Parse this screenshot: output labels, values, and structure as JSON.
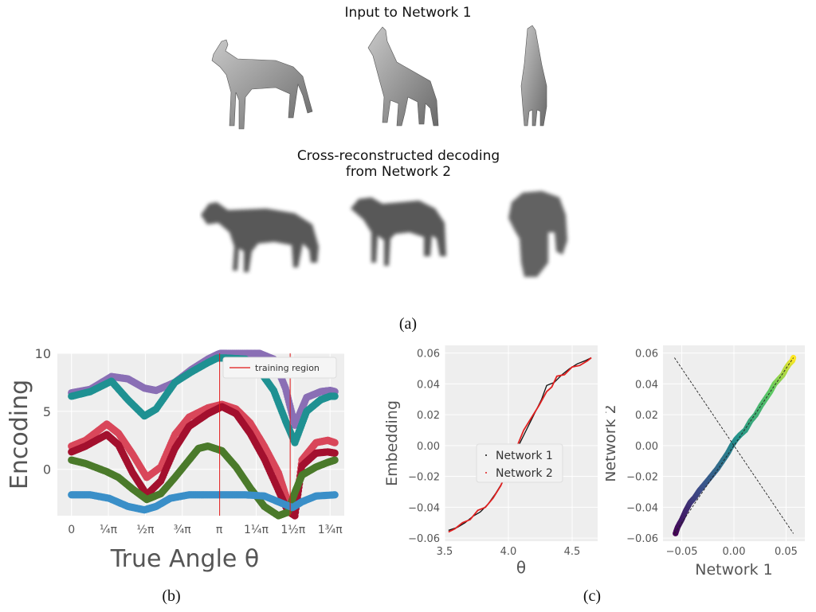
{
  "panel_a": {
    "top_title": "Input to Network 1",
    "bottom_title_line1": "Cross-reconstructed decoding",
    "bottom_title_line2": "from Network 2",
    "caption": "(a)"
  },
  "panel_b": {
    "caption": "(b)"
  },
  "panel_c": {
    "caption": "(c)"
  },
  "chart_data": [
    {
      "type": "scatter",
      "title": "",
      "xlabel": "True Angle θ",
      "ylabel": "Encoding",
      "xlim": [
        -0.3,
        5.8
      ],
      "ylim": [
        -4,
        10
      ],
      "xticks": [
        {
          "v": 0,
          "label": "0"
        },
        {
          "v": 0.785,
          "label": "¼π"
        },
        {
          "v": 1.571,
          "label": "½π"
        },
        {
          "v": 2.356,
          "label": "¾π"
        },
        {
          "v": 3.142,
          "label": "π"
        },
        {
          "v": 3.927,
          "label": "1¼π"
        },
        {
          "v": 4.712,
          "label": "1½π"
        },
        {
          "v": 5.498,
          "label": "1¾π"
        }
      ],
      "yticks": [
        0,
        5,
        10
      ],
      "grid": true,
      "legend": {
        "entries": [
          "training region"
        ],
        "placement": "top-right"
      },
      "training_region": [
        3.15,
        4.65
      ],
      "series": [
        {
          "color": "#8a6fb5",
          "x": [
            0,
            0.4,
            0.85,
            1.2,
            1.55,
            1.8,
            2.2,
            2.55,
            2.9,
            3.1,
            3.3,
            3.7,
            4.0,
            4.3,
            4.55,
            4.75,
            5.0,
            5.3,
            5.5,
            5.6
          ],
          "y": [
            6.6,
            6.9,
            8.0,
            7.8,
            7.0,
            6.8,
            7.5,
            8.6,
            9.5,
            9.9,
            10.2,
            10.2,
            10.0,
            9.5,
            7.0,
            3.8,
            6.2,
            6.7,
            6.8,
            6.7
          ]
        },
        {
          "color": "#1f9192",
          "x": [
            0,
            0.4,
            0.85,
            1.2,
            1.55,
            1.8,
            2.2,
            2.55,
            2.9,
            3.1,
            3.3,
            3.7,
            4.0,
            4.3,
            4.55,
            4.75,
            5.0,
            5.3,
            5.5,
            5.6
          ],
          "y": [
            6.3,
            6.7,
            7.6,
            6.0,
            4.6,
            5.2,
            7.5,
            8.4,
            9.2,
            9.6,
            9.6,
            9.5,
            8.5,
            6.8,
            4.2,
            2.3,
            5.0,
            6.0,
            6.3,
            6.3
          ]
        },
        {
          "color": "#d9475a",
          "x": [
            0,
            0.3,
            0.75,
            1.0,
            1.3,
            1.6,
            1.9,
            2.2,
            2.5,
            2.9,
            3.2,
            3.5,
            3.8,
            4.1,
            4.4,
            4.6,
            4.75,
            4.9,
            5.2,
            5.45,
            5.6
          ],
          "y": [
            2.0,
            2.5,
            3.9,
            3.1,
            1.3,
            -0.7,
            0.2,
            3.0,
            4.5,
            5.3,
            5.6,
            5.2,
            4.0,
            2.0,
            -0.3,
            -2.8,
            -4.0,
            0.8,
            2.3,
            2.5,
            2.3
          ]
        },
        {
          "color": "#a3102e",
          "x": [
            0,
            0.3,
            0.75,
            1.0,
            1.3,
            1.6,
            1.9,
            2.2,
            2.5,
            2.9,
            3.2,
            3.5,
            3.8,
            4.1,
            4.4,
            4.6,
            4.75,
            4.9,
            5.2,
            5.45,
            5.6
          ],
          "y": [
            1.5,
            2.0,
            3.0,
            2.1,
            -0.3,
            -2.2,
            -1.0,
            1.8,
            3.7,
            4.8,
            5.4,
            4.8,
            3.1,
            0.9,
            -1.8,
            -3.6,
            -4.0,
            0.3,
            1.4,
            1.5,
            1.4
          ]
        },
        {
          "color": "#4b7a2b",
          "x": [
            0,
            0.3,
            0.75,
            1.0,
            1.3,
            1.6,
            1.9,
            2.2,
            2.5,
            2.7,
            2.9,
            3.2,
            3.5,
            3.8,
            4.1,
            4.4,
            4.6,
            4.75,
            4.9,
            5.2,
            5.45,
            5.6
          ],
          "y": [
            0.8,
            0.5,
            -0.2,
            -0.7,
            -1.7,
            -2.6,
            -2.1,
            -0.7,
            0.8,
            1.8,
            2.0,
            1.6,
            0.2,
            -1.6,
            -3.2,
            -4.0,
            -3.7,
            -2.0,
            -0.5,
            0.2,
            0.6,
            0.8
          ]
        },
        {
          "color": "#3a8fc8",
          "x": [
            0,
            0.4,
            0.8,
            1.2,
            1.55,
            1.8,
            2.1,
            2.5,
            2.9,
            3.3,
            3.7,
            4.1,
            4.4,
            4.7,
            4.9,
            5.2,
            5.6
          ],
          "y": [
            -2.2,
            -2.2,
            -2.5,
            -3.2,
            -3.5,
            -3.2,
            -2.5,
            -2.2,
            -2.2,
            -2.2,
            -2.2,
            -2.3,
            -2.8,
            -3.3,
            -2.8,
            -2.3,
            -2.2
          ]
        }
      ]
    },
    {
      "type": "line",
      "title": "",
      "xlabel": "θ",
      "ylabel": "Embedding",
      "xlim": [
        3.5,
        4.7
      ],
      "ylim": [
        -0.062,
        0.065
      ],
      "xticks": [
        3.5,
        4.0,
        4.5
      ],
      "yticks": [
        -0.06,
        -0.04,
        -0.02,
        0.0,
        0.02,
        0.04,
        0.06
      ],
      "ytick_labels": [
        "−0.06",
        "−0.04",
        "−0.02",
        "0.00",
        "0.02",
        "0.04",
        "0.06"
      ],
      "grid": true,
      "legend": {
        "entries": [
          "Network 1",
          "Network 2"
        ],
        "placement": "center-right"
      },
      "series": [
        {
          "name": "Network 1",
          "color": "#111111",
          "x": [
            3.53,
            3.6,
            3.66,
            3.72,
            3.78,
            3.84,
            3.9,
            3.96,
            4.02,
            4.08,
            4.14,
            4.2,
            4.26,
            4.3,
            4.36,
            4.42,
            4.48,
            4.54,
            4.6,
            4.65
          ],
          "y": [
            -0.055,
            -0.053,
            -0.05,
            -0.046,
            -0.043,
            -0.038,
            -0.031,
            -0.023,
            -0.012,
            0.0,
            0.01,
            0.02,
            0.03,
            0.039,
            0.041,
            0.046,
            0.05,
            0.053,
            0.055,
            0.057
          ]
        },
        {
          "name": "Network 2",
          "color": "#e02020",
          "x": [
            3.53,
            3.58,
            3.64,
            3.7,
            3.76,
            3.82,
            3.88,
            3.94,
            4.0,
            4.06,
            4.12,
            4.18,
            4.24,
            4.3,
            4.34,
            4.38,
            4.44,
            4.5,
            4.56,
            4.62,
            4.65
          ],
          "y": [
            -0.056,
            -0.054,
            -0.05,
            -0.048,
            -0.042,
            -0.04,
            -0.034,
            -0.026,
            -0.014,
            -0.002,
            0.01,
            0.018,
            0.026,
            0.035,
            0.038,
            0.045,
            0.046,
            0.051,
            0.052,
            0.055,
            0.057
          ]
        }
      ]
    },
    {
      "type": "scatter",
      "title": "",
      "xlabel": "Network 1",
      "ylabel": "Network 2",
      "xlim": [
        -0.068,
        0.068
      ],
      "ylim": [
        -0.062,
        0.065
      ],
      "xticks": [
        -0.05,
        0.0,
        0.05
      ],
      "xtick_labels": [
        "−0.05",
        "0.00",
        "0.05"
      ],
      "yticks": [
        -0.06,
        -0.04,
        -0.02,
        0.0,
        0.02,
        0.04,
        0.06
      ],
      "ytick_labels": [
        "−0.06",
        "−0.04",
        "−0.02",
        "0.00",
        "0.02",
        "0.04",
        "0.06"
      ],
      "grid": true,
      "colormap": "viridis",
      "points_x": [
        -0.056,
        -0.054,
        -0.05,
        -0.046,
        -0.042,
        -0.038,
        -0.033,
        -0.028,
        -0.022,
        -0.016,
        -0.011,
        -0.006,
        -0.002,
        0.002,
        0.006,
        0.011,
        0.016,
        0.021,
        0.026,
        0.031,
        0.035,
        0.039,
        0.043,
        0.047,
        0.05,
        0.053,
        0.056,
        0.057
      ],
      "points_y": [
        -0.057,
        -0.053,
        -0.048,
        -0.042,
        -0.037,
        -0.034,
        -0.029,
        -0.025,
        -0.02,
        -0.015,
        -0.01,
        -0.005,
        0.0,
        0.004,
        0.007,
        0.01,
        0.016,
        0.02,
        0.026,
        0.031,
        0.035,
        0.04,
        0.043,
        0.046,
        0.05,
        0.053,
        0.055,
        0.057
      ],
      "reference_lines": [
        {
          "x": [
            -0.057,
            0.057
          ],
          "y": [
            -0.057,
            0.057
          ]
        },
        {
          "x": [
            -0.057,
            0.057
          ],
          "y": [
            0.057,
            -0.057
          ]
        }
      ]
    }
  ]
}
